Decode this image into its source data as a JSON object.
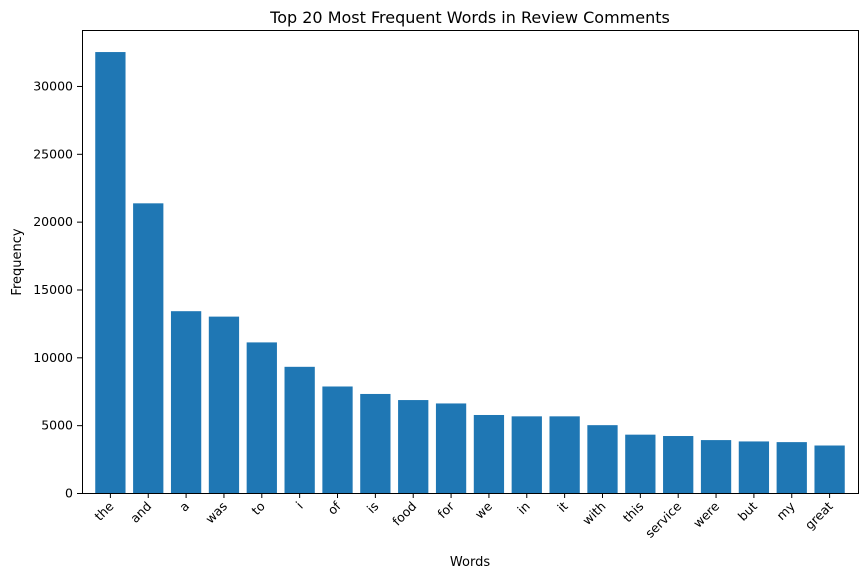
{
  "chart_data": {
    "type": "bar",
    "title": "Top 20 Most Frequent Words in Review Comments",
    "xlabel": "Words",
    "ylabel": "Frequency",
    "categories": [
      "the",
      "and",
      "a",
      "was",
      "to",
      "i",
      "of",
      "is",
      "food",
      "for",
      "we",
      "in",
      "it",
      "with",
      "this",
      "service",
      "were",
      "but",
      "my",
      "great"
    ],
    "values": [
      32500,
      21350,
      13400,
      13000,
      11100,
      9300,
      7850,
      7300,
      6850,
      6600,
      5750,
      5650,
      5650,
      5000,
      4300,
      4200,
      3900,
      3800,
      3750,
      3500
    ],
    "ylim": [
      0,
      34125
    ],
    "yticks": [
      0,
      5000,
      10000,
      15000,
      20000,
      25000,
      30000
    ],
    "color": "#1f77b4",
    "grid": false,
    "legend": "none"
  }
}
